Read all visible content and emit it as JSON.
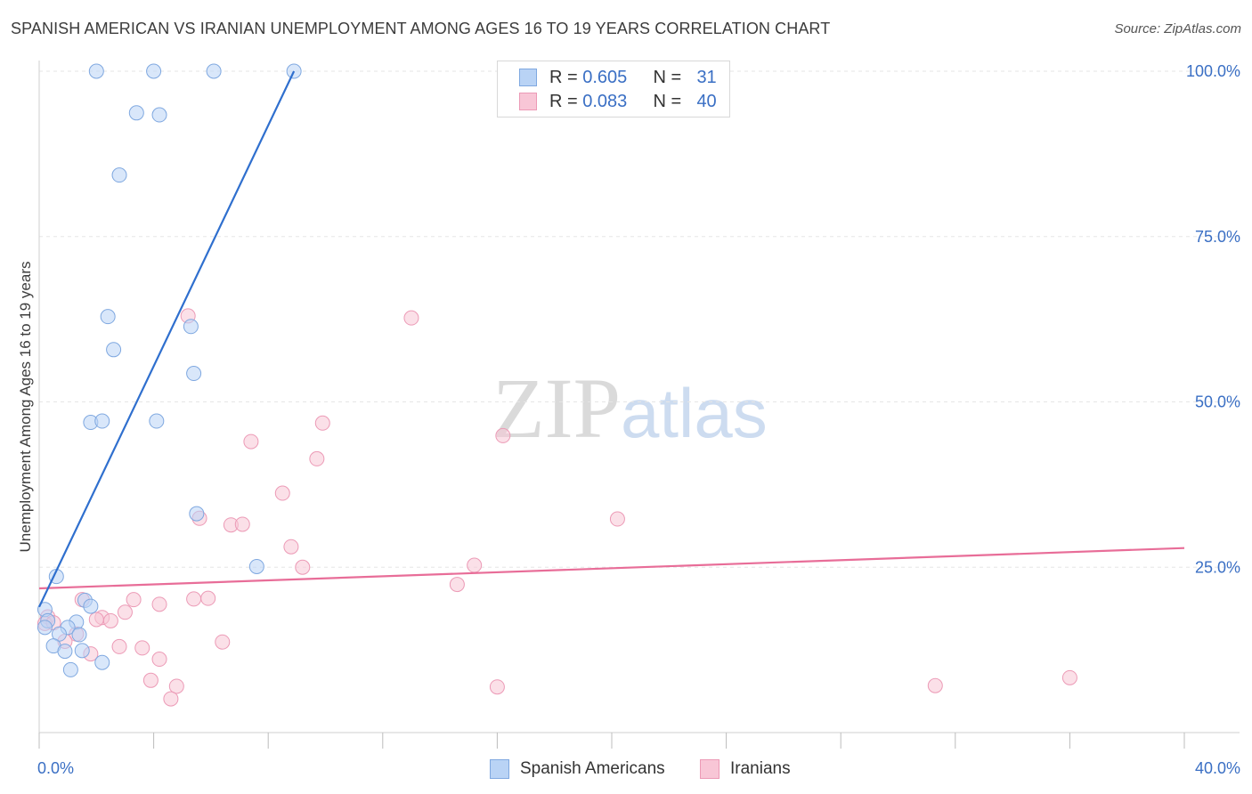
{
  "header": {
    "title": "SPANISH AMERICAN VS IRANIAN UNEMPLOYMENT AMONG AGES 16 TO 19 YEARS CORRELATION CHART",
    "source": "Source: ZipAtlas.com"
  },
  "watermark": {
    "zip": "ZIP",
    "atlas": "atlas"
  },
  "legend": {
    "rows": [
      {
        "r_label": "R = ",
        "r_value": "0.605",
        "n_label": "N = ",
        "n_value": "31"
      },
      {
        "r_label": "R = ",
        "r_value": "0.083",
        "n_label": "N = ",
        "n_value": "40"
      }
    ]
  },
  "bottom_legend": {
    "series1": "Spanish Americans",
    "series2": "Iranians"
  },
  "colors": {
    "blue_fill": "#b9d3f5",
    "blue_stroke": "#7fa8e0",
    "blue_line": "#2f6fce",
    "pink_fill": "#f8c6d6",
    "pink_stroke": "#ec9ab6",
    "pink_line": "#e86d98",
    "axis_label": "#3a6fc4",
    "grid": "#e6e6e6"
  },
  "chart_data": {
    "type": "scatter",
    "title": "SPANISH AMERICAN VS IRANIAN UNEMPLOYMENT AMONG AGES 16 TO 19 YEARS CORRELATION CHART",
    "xlabel": "",
    "ylabel": "Unemployment Among Ages 16 to 19 years",
    "xlim": [
      0,
      40
    ],
    "ylim": [
      0,
      102
    ],
    "x_tick_labels": [
      {
        "value": 0,
        "label": "0.0%"
      },
      {
        "value": 40,
        "label": "40.0%"
      }
    ],
    "y_tick_labels": [
      {
        "value": 25,
        "label": "25.0%"
      },
      {
        "value": 50,
        "label": "50.0%"
      },
      {
        "value": 75,
        "label": "75.0%"
      },
      {
        "value": 100,
        "label": "100.0%"
      }
    ],
    "series": [
      {
        "name": "Spanish Americans",
        "R": 0.605,
        "N": 31,
        "trend": {
          "x": [
            0.0,
            8.9
          ],
          "y": [
            19.0,
            100.0
          ]
        },
        "points": [
          {
            "x": 2.0,
            "y": 100
          },
          {
            "x": 4.0,
            "y": 100
          },
          {
            "x": 6.1,
            "y": 100
          },
          {
            "x": 8.9,
            "y": 100
          },
          {
            "x": 3.4,
            "y": 93.7
          },
          {
            "x": 4.2,
            "y": 93.4
          },
          {
            "x": 2.8,
            "y": 84.3
          },
          {
            "x": 2.4,
            "y": 62.9
          },
          {
            "x": 5.3,
            "y": 61.4
          },
          {
            "x": 2.6,
            "y": 57.9
          },
          {
            "x": 5.4,
            "y": 54.3
          },
          {
            "x": 1.8,
            "y": 46.9
          },
          {
            "x": 2.2,
            "y": 47.1
          },
          {
            "x": 4.1,
            "y": 47.1
          },
          {
            "x": 5.5,
            "y": 33.1
          },
          {
            "x": 7.6,
            "y": 25.1
          },
          {
            "x": 0.6,
            "y": 23.6
          },
          {
            "x": 1.6,
            "y": 20.0
          },
          {
            "x": 1.8,
            "y": 19.1
          },
          {
            "x": 0.2,
            "y": 18.6
          },
          {
            "x": 0.3,
            "y": 16.9
          },
          {
            "x": 1.3,
            "y": 16.7
          },
          {
            "x": 0.2,
            "y": 15.9
          },
          {
            "x": 1.0,
            "y": 15.9
          },
          {
            "x": 0.7,
            "y": 14.9
          },
          {
            "x": 1.4,
            "y": 14.8
          },
          {
            "x": 0.5,
            "y": 13.1
          },
          {
            "x": 1.5,
            "y": 12.4
          },
          {
            "x": 0.9,
            "y": 12.3
          },
          {
            "x": 2.2,
            "y": 10.6
          },
          {
            "x": 1.1,
            "y": 9.5
          }
        ]
      },
      {
        "name": "Iranians",
        "R": 0.083,
        "N": 40,
        "trend": {
          "x": [
            0.0,
            40.0
          ],
          "y": [
            21.8,
            27.9
          ]
        },
        "points": [
          {
            "x": 5.2,
            "y": 63.0
          },
          {
            "x": 13.0,
            "y": 62.7
          },
          {
            "x": 9.9,
            "y": 46.8
          },
          {
            "x": 16.2,
            "y": 44.9
          },
          {
            "x": 7.4,
            "y": 44.0
          },
          {
            "x": 9.7,
            "y": 41.4
          },
          {
            "x": 8.5,
            "y": 36.2
          },
          {
            "x": 20.2,
            "y": 32.3
          },
          {
            "x": 5.6,
            "y": 32.4
          },
          {
            "x": 6.7,
            "y": 31.4
          },
          {
            "x": 7.1,
            "y": 31.5
          },
          {
            "x": 8.8,
            "y": 28.1
          },
          {
            "x": 9.2,
            "y": 25.0
          },
          {
            "x": 15.2,
            "y": 25.3
          },
          {
            "x": 14.6,
            "y": 22.4
          },
          {
            "x": 1.5,
            "y": 20.1
          },
          {
            "x": 3.3,
            "y": 20.1
          },
          {
            "x": 5.4,
            "y": 20.2
          },
          {
            "x": 5.9,
            "y": 20.3
          },
          {
            "x": 4.2,
            "y": 19.4
          },
          {
            "x": 3.0,
            "y": 18.2
          },
          {
            "x": 2.2,
            "y": 17.4
          },
          {
            "x": 2.0,
            "y": 17.1
          },
          {
            "x": 0.3,
            "y": 17.5
          },
          {
            "x": 0.2,
            "y": 16.5
          },
          {
            "x": 2.5,
            "y": 16.9
          },
          {
            "x": 0.5,
            "y": 16.6
          },
          {
            "x": 1.3,
            "y": 14.9
          },
          {
            "x": 0.9,
            "y": 13.8
          },
          {
            "x": 6.4,
            "y": 13.7
          },
          {
            "x": 2.8,
            "y": 13.0
          },
          {
            "x": 3.6,
            "y": 12.8
          },
          {
            "x": 1.8,
            "y": 11.9
          },
          {
            "x": 4.2,
            "y": 11.1
          },
          {
            "x": 3.9,
            "y": 7.9
          },
          {
            "x": 4.8,
            "y": 7.0
          },
          {
            "x": 4.6,
            "y": 5.1
          },
          {
            "x": 16.0,
            "y": 6.9
          },
          {
            "x": 31.3,
            "y": 7.1
          },
          {
            "x": 36.0,
            "y": 8.3
          }
        ]
      }
    ]
  }
}
